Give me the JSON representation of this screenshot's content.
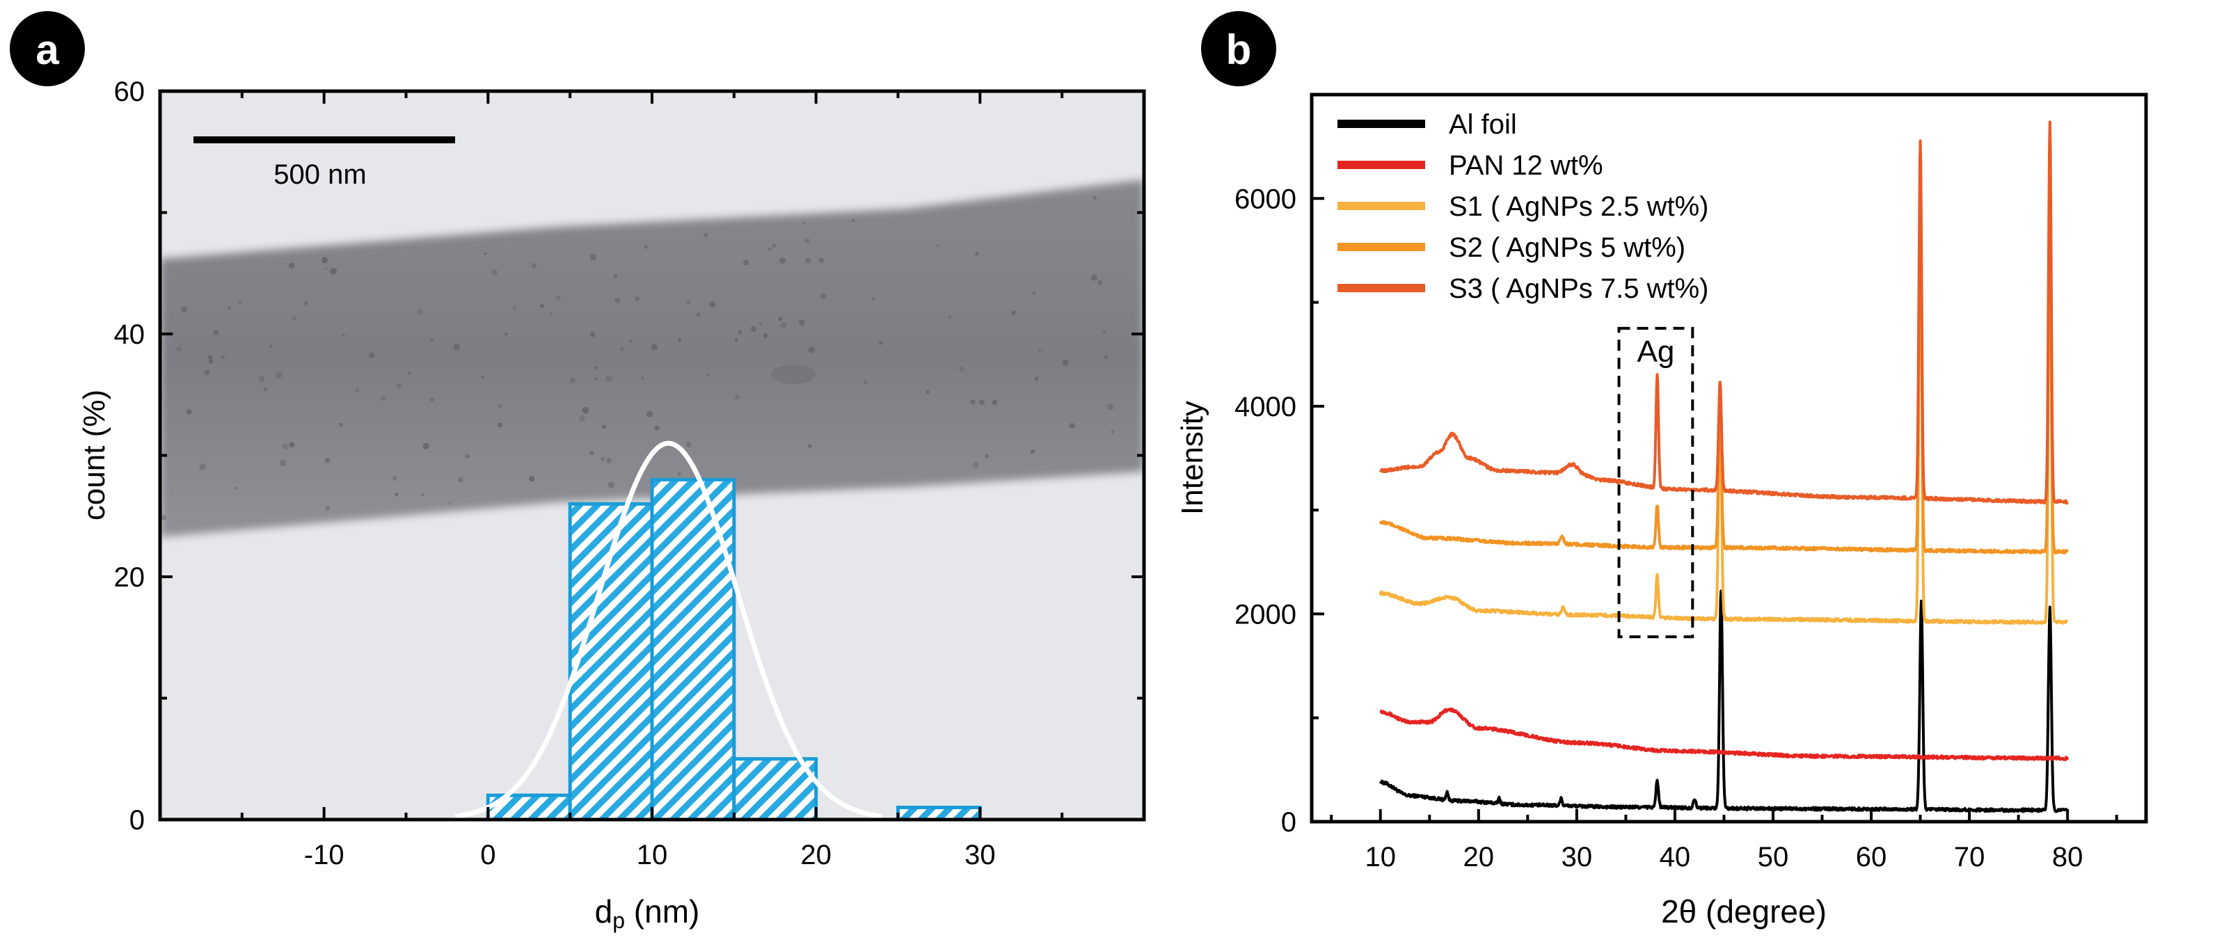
{
  "colors": {
    "hist_fill": "#29a9e1",
    "hist_edge": "#1a9bd7",
    "gauss": "#ffffff",
    "tem_background": "#e6e7ea",
    "tem_fiber": "#8a8c91",
    "badge": "#000000",
    "axis": "#000000"
  },
  "chart_data": [
    {
      "panel": "a",
      "type": "bar",
      "title": "",
      "xlabel_main": "d",
      "xlabel_sub": "p",
      "xlabel_unit": " (nm)",
      "ylabel": "count (%)",
      "xlim": [
        -20,
        40
      ],
      "ylim": [
        0,
        60
      ],
      "xticks": [
        -10,
        0,
        10,
        20,
        30
      ],
      "yticks": [
        0,
        20,
        40,
        60
      ],
      "background_image": "TEM micrograph of a single electrospun nanofiber with dark silver nanoparticles",
      "scale_bar_label": "500 nm",
      "bins": [
        [
          0,
          5
        ],
        [
          5,
          10
        ],
        [
          10,
          15
        ],
        [
          15,
          20
        ],
        [
          20,
          25
        ],
        [
          25,
          30
        ]
      ],
      "values": [
        2,
        26,
        28,
        5,
        0,
        1
      ],
      "fit": {
        "type": "gaussian",
        "mean": 11,
        "sigma": 4.2,
        "peak": 31
      }
    },
    {
      "panel": "b",
      "type": "line",
      "title": "",
      "xlabel": "2θ (degree)",
      "ylabel": "Intensity",
      "xlim": [
        3,
        88
      ],
      "ylim": [
        0,
        7000
      ],
      "xticks": [
        10,
        20,
        30,
        40,
        50,
        60,
        70,
        80
      ],
      "yticks": [
        0,
        2000,
        4000,
        6000
      ],
      "annotation": {
        "label": "Ag",
        "x_range": [
          34.3,
          41.8
        ],
        "y_range": [
          1780,
          4750
        ]
      },
      "legend_position": "top-left",
      "series": [
        {
          "name": "Al foil",
          "color": "#000000",
          "baseline": [
            [
              10,
              380
            ],
            [
              13,
              250
            ],
            [
              18,
              200
            ],
            [
              25,
              160
            ],
            [
              35,
              140
            ],
            [
              50,
              125
            ],
            [
              80,
              110
            ]
          ],
          "peaks": [
            [
              16.8,
              80,
              0.25
            ],
            [
              22.1,
              50,
              0.25
            ],
            [
              28.4,
              80,
              0.25
            ],
            [
              38.2,
              260,
              0.3
            ],
            [
              42.0,
              90,
              0.3
            ],
            [
              44.7,
              2100,
              0.35
            ],
            [
              65.1,
              2000,
              0.35
            ],
            [
              78.2,
              1950,
              0.35
            ]
          ]
        },
        {
          "name": "PAN 12 wt%",
          "color": "#e52521",
          "baseline": [
            [
              10,
              1060
            ],
            [
              13,
              960
            ],
            [
              15,
              960
            ],
            [
              17,
              1080
            ],
            [
              20,
              900
            ],
            [
              30,
              760
            ],
            [
              40,
              680
            ],
            [
              55,
              630
            ],
            [
              80,
              610
            ]
          ],
          "peaks": []
        },
        {
          "name": "S1 ( AgNPs 2.5 wt%)",
          "color": "#f7b13e",
          "baseline": [
            [
              10,
              2200
            ],
            [
              14,
              2100
            ],
            [
              17,
              2160
            ],
            [
              20,
              2030
            ],
            [
              30,
              1990
            ],
            [
              45,
              1950
            ],
            [
              80,
              1920
            ]
          ],
          "peaks": [
            [
              28.6,
              70,
              0.4
            ],
            [
              38.2,
              400,
              0.3
            ],
            [
              44.6,
              2150,
              0.35
            ],
            [
              65.0,
              4400,
              0.32
            ],
            [
              78.2,
              4350,
              0.32
            ]
          ]
        },
        {
          "name": "S2 ( AgNPs 5 wt%)",
          "color": "#f29423",
          "baseline": [
            [
              10,
              2880
            ],
            [
              15,
              2730
            ],
            [
              25,
              2680
            ],
            [
              40,
              2640
            ],
            [
              80,
              2600
            ]
          ],
          "peaks": [
            [
              28.5,
              80,
              0.4
            ],
            [
              38.2,
              410,
              0.3
            ],
            [
              44.6,
              1450,
              0.35
            ],
            [
              65.0,
              3700,
              0.32
            ],
            [
              78.2,
              3600,
              0.32
            ]
          ]
        },
        {
          "name": "S3 ( AgNPs 7.5 wt%)",
          "color": "#e85c28",
          "baseline": [
            [
              10,
              3380
            ],
            [
              14,
              3420
            ],
            [
              16,
              3560
            ],
            [
              17.3,
              3730
            ],
            [
              19,
              3500
            ],
            [
              22,
              3380
            ],
            [
              28,
              3360
            ],
            [
              29.5,
              3440
            ],
            [
              31,
              3330
            ],
            [
              32.3,
              3290
            ],
            [
              40,
              3200
            ],
            [
              60,
              3120
            ],
            [
              80,
              3080
            ]
          ],
          "peaks": [
            [
              38.2,
              1100,
              0.3
            ],
            [
              44.6,
              1050,
              0.35
            ],
            [
              65.0,
              3450,
              0.32
            ],
            [
              78.2,
              3650,
              0.32
            ]
          ]
        }
      ]
    }
  ],
  "panels": {
    "a": {
      "badge": "a"
    },
    "b": {
      "badge": "b"
    }
  }
}
